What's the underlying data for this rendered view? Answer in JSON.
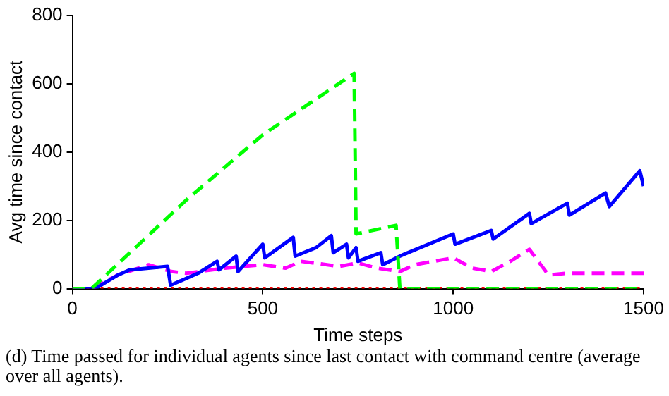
{
  "chart_data": {
    "type": "line",
    "xlabel": "Time steps",
    "ylabel": "Avg time since contact",
    "xlim": [
      0,
      1500
    ],
    "ylim": [
      0,
      800
    ],
    "xticks": [
      0,
      500,
      1000,
      1500
    ],
    "yticks": [
      0,
      200,
      400,
      600,
      800
    ],
    "grid": false,
    "legend": false,
    "marker": "none",
    "annotations": [
      "(d) Time passed for individual agents since last contact with command centre (average over all agents)."
    ],
    "series": [
      {
        "color": "#00ff00",
        "line_style": "dashed",
        "x": [
          0,
          50,
          300,
          500,
          740,
          745,
          850,
          860,
          1500
        ],
        "values": [
          0,
          0,
          260,
          450,
          630,
          160,
          185,
          0,
          0
        ]
      },
      {
        "color": "#0000ff",
        "line_style": "solid",
        "x": [
          0,
          60,
          120,
          150,
          200,
          250,
          258,
          330,
          380,
          385,
          430,
          435,
          500,
          505,
          580,
          585,
          640,
          680,
          685,
          720,
          725,
          745,
          750,
          810,
          815,
          860,
          870,
          1000,
          1005,
          1100,
          1105,
          1200,
          1205,
          1300,
          1305,
          1400,
          1410,
          1490,
          1500
        ],
        "values": [
          0,
          0,
          40,
          55,
          60,
          65,
          10,
          45,
          80,
          55,
          95,
          50,
          130,
          90,
          150,
          95,
          120,
          155,
          105,
          130,
          90,
          120,
          80,
          105,
          70,
          95,
          100,
          160,
          130,
          170,
          145,
          220,
          190,
          250,
          215,
          280,
          240,
          345,
          300
        ]
      },
      {
        "color": "#ff00ff",
        "line_style": "dashed",
        "x": [
          0,
          50,
          120,
          200,
          260,
          300,
          400,
          500,
          560,
          600,
          700,
          750,
          800,
          860,
          900,
          1000,
          1050,
          1100,
          1150,
          1200,
          1250,
          1300,
          1320,
          1500
        ],
        "values": [
          0,
          0,
          40,
          70,
          50,
          45,
          60,
          70,
          60,
          80,
          65,
          75,
          60,
          50,
          70,
          90,
          60,
          50,
          80,
          115,
          40,
          45,
          45,
          45
        ]
      },
      {
        "color": "#ff0000",
        "line_style": "dotted",
        "x": [
          0,
          1500
        ],
        "values": [
          0,
          0
        ]
      }
    ]
  }
}
